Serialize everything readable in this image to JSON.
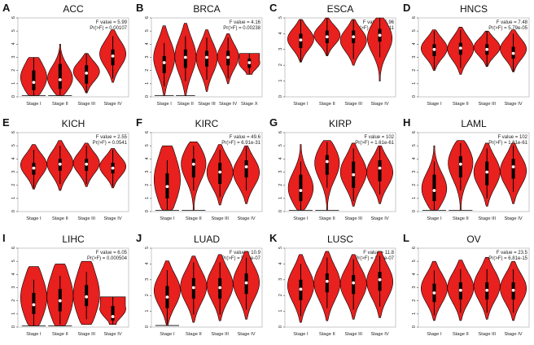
{
  "figure": {
    "violin_color": "#e8201e",
    "box_color": "#000000",
    "median_color": "#ffffff",
    "panel_border_color": "#bbbbbb",
    "text_color": "#222222",
    "y_ticks": [
      0,
      1,
      2,
      3,
      4,
      5,
      6
    ]
  },
  "chart_data": [
    {
      "letter": "A",
      "title": "ACC",
      "type": "violin",
      "f_label": "F value = 5.99",
      "p_label": "Pr(>F) = 0.00107",
      "categories": [
        "Stage I",
        "Stage II",
        "Stage III",
        "Stage IV"
      ],
      "ylim": [
        0,
        6
      ],
      "series": [
        {
          "category": "Stage I",
          "min": 0.1,
          "max": 3.0,
          "median": 1.1,
          "q1": 0.5,
          "q3": 2.0,
          "shape": "wide"
        },
        {
          "category": "Stage II",
          "min": 0.1,
          "max": 4.0,
          "median": 1.3,
          "q1": 0.6,
          "q3": 2.5,
          "shape": "low"
        },
        {
          "category": "Stage III",
          "min": 0.3,
          "max": 3.3,
          "median": 1.8,
          "q1": 1.0,
          "q3": 2.4,
          "shape": "mid"
        },
        {
          "category": "Stage IV",
          "min": 1.1,
          "max": 5.1,
          "median": 3.1,
          "q1": 2.4,
          "q3": 3.6,
          "shape": "mid"
        }
      ]
    },
    {
      "letter": "B",
      "title": "BRCA",
      "type": "violin",
      "f_label": "F value = 4.16",
      "p_label": "Pr(>F) = 0.00238",
      "categories": [
        "Stage I",
        "Stage II",
        "Stage III",
        "Stage IV",
        "Stage X"
      ],
      "ylim": [
        0,
        6
      ],
      "series": [
        {
          "category": "Stage I",
          "min": 0.1,
          "max": 5.4,
          "median": 2.6,
          "q1": 1.8,
          "q3": 3.1,
          "shape": "mid"
        },
        {
          "category": "Stage II",
          "min": 0.1,
          "max": 5.6,
          "median": 3.0,
          "q1": 2.2,
          "q3": 3.6,
          "shape": "mid"
        },
        {
          "category": "Stage III",
          "min": 0.4,
          "max": 5.1,
          "median": 3.0,
          "q1": 2.3,
          "q3": 3.5,
          "shape": "mid"
        },
        {
          "category": "Stage IV",
          "min": 1.0,
          "max": 4.8,
          "median": 3.0,
          "q1": 2.4,
          "q3": 3.5,
          "shape": "mid"
        },
        {
          "category": "Stage X",
          "min": 1.7,
          "max": 3.3,
          "median": 2.6,
          "q1": 2.2,
          "q3": 2.9,
          "shape": "top"
        }
      ]
    },
    {
      "letter": "C",
      "title": "ESCA",
      "type": "violin",
      "f_label": "F value = 5.96",
      "p_label": "Pr(>F) = 0.000511",
      "categories": [
        "Stage I",
        "Stage II",
        "Stage III",
        "Stage IV"
      ],
      "ylim": [
        0,
        5
      ],
      "series": [
        {
          "category": "Stage I",
          "min": 2.2,
          "max": 4.9,
          "median": 3.6,
          "q1": 3.1,
          "q3": 4.0,
          "shape": "mid"
        },
        {
          "category": "Stage II",
          "min": 2.6,
          "max": 5.0,
          "median": 3.8,
          "q1": 3.4,
          "q3": 4.2,
          "shape": "mid"
        },
        {
          "category": "Stage III",
          "min": 2.0,
          "max": 4.9,
          "median": 3.8,
          "q1": 3.4,
          "q3": 4.2,
          "shape": "mid"
        },
        {
          "category": "Stage IV",
          "min": 1.0,
          "max": 5.0,
          "median": 3.9,
          "q1": 3.5,
          "q3": 4.3,
          "shape": "high"
        }
      ]
    },
    {
      "letter": "D",
      "title": "HNCS",
      "type": "violin",
      "f_label": "F value = 7.48",
      "p_label": "Pr(>F) = 5.79e-05",
      "categories": [
        "Stage I",
        "Stage II",
        "Stage III",
        "Stage IV"
      ],
      "ylim": [
        0,
        6
      ],
      "series": [
        {
          "category": "Stage I",
          "min": 2.0,
          "max": 5.1,
          "median": 3.6,
          "q1": 3.1,
          "q3": 4.0,
          "shape": "mid"
        },
        {
          "category": "Stage II",
          "min": 1.7,
          "max": 5.3,
          "median": 3.7,
          "q1": 3.2,
          "q3": 4.1,
          "shape": "mid"
        },
        {
          "category": "Stage III",
          "min": 2.3,
          "max": 5.0,
          "median": 3.6,
          "q1": 3.2,
          "q3": 4.0,
          "shape": "mid"
        },
        {
          "category": "Stage IV",
          "min": 1.9,
          "max": 5.1,
          "median": 3.3,
          "q1": 2.9,
          "q3": 3.8,
          "shape": "mid"
        }
      ]
    },
    {
      "letter": "E",
      "title": "KICH",
      "type": "violin",
      "f_label": "F value = 2.55",
      "p_label": "Pr(>F) = 0.0541",
      "categories": [
        "Stage I",
        "Stage II",
        "Stage III",
        "Stage IV"
      ],
      "ylim": [
        0,
        6
      ],
      "series": [
        {
          "category": "Stage I",
          "min": 1.7,
          "max": 5.1,
          "median": 3.3,
          "q1": 2.8,
          "q3": 3.7,
          "shape": "mid"
        },
        {
          "category": "Stage II",
          "min": 1.6,
          "max": 5.4,
          "median": 3.6,
          "q1": 3.1,
          "q3": 4.0,
          "shape": "mid"
        },
        {
          "category": "Stage III",
          "min": 1.9,
          "max": 5.2,
          "median": 3.6,
          "q1": 3.1,
          "q3": 4.0,
          "shape": "mid"
        },
        {
          "category": "Stage IV",
          "min": 1.8,
          "max": 4.8,
          "median": 3.3,
          "q1": 2.9,
          "q3": 3.7,
          "shape": "mid"
        }
      ]
    },
    {
      "letter": "F",
      "title": "KIRC",
      "type": "violin",
      "f_label": "F value = 49.6",
      "p_label": "Pr(>F) = 6.91e-31",
      "categories": [
        "Stage I",
        "Stage II",
        "Stage III",
        "Stage IV"
      ],
      "ylim": [
        0,
        6
      ],
      "series": [
        {
          "category": "Stage I",
          "min": 0.1,
          "max": 5.0,
          "median": 1.9,
          "q1": 1.0,
          "q3": 2.9,
          "shape": "wide"
        },
        {
          "category": "Stage II",
          "min": 0.1,
          "max": 5.3,
          "median": 3.6,
          "q1": 2.6,
          "q3": 4.0,
          "shape": "high"
        },
        {
          "category": "Stage III",
          "min": 0.5,
          "max": 5.1,
          "median": 3.0,
          "q1": 2.1,
          "q3": 3.7,
          "shape": "mid"
        },
        {
          "category": "Stage IV",
          "min": 0.6,
          "max": 5.0,
          "median": 3.4,
          "q1": 2.6,
          "q3": 3.9,
          "shape": "mid"
        }
      ]
    },
    {
      "letter": "G",
      "title": "KIRP",
      "type": "violin",
      "f_label": "F value = 102",
      "p_label": "Pr(>F) = 1.61e-61",
      "categories": [
        "Stage I",
        "Stage II",
        "Stage III",
        "Stage IV"
      ],
      "ylim": [
        0,
        6
      ],
      "series": [
        {
          "category": "Stage I",
          "min": 0.1,
          "max": 5.1,
          "median": 1.6,
          "q1": 0.8,
          "q3": 2.8,
          "shape": "low"
        },
        {
          "category": "Stage II",
          "min": 0.1,
          "max": 5.4,
          "median": 3.8,
          "q1": 2.8,
          "q3": 4.3,
          "shape": "high"
        },
        {
          "category": "Stage III",
          "min": 0.4,
          "max": 5.2,
          "median": 2.8,
          "q1": 1.8,
          "q3": 3.8,
          "shape": "mid"
        },
        {
          "category": "Stage IV",
          "min": 0.6,
          "max": 5.0,
          "median": 3.3,
          "q1": 2.3,
          "q3": 3.9,
          "shape": "mid"
        }
      ]
    },
    {
      "letter": "H",
      "title": "LAML",
      "type": "violin",
      "f_label": "F value = 102",
      "p_label": "Pr(>F) = 1.61e-61",
      "categories": [
        "Stage I",
        "Stage II",
        "Stage III",
        "Stage IV"
      ],
      "ylim": [
        0,
        6
      ],
      "series": [
        {
          "category": "Stage I",
          "min": 0.1,
          "max": 5.0,
          "median": 1.6,
          "q1": 0.8,
          "q3": 2.8,
          "shape": "low"
        },
        {
          "category": "Stage II",
          "min": 0.1,
          "max": 5.4,
          "median": 3.6,
          "q1": 2.6,
          "q3": 4.2,
          "shape": "high"
        },
        {
          "category": "Stage III",
          "min": 0.4,
          "max": 5.2,
          "median": 3.0,
          "q1": 2.0,
          "q3": 3.8,
          "shape": "mid"
        },
        {
          "category": "Stage IV",
          "min": 0.6,
          "max": 5.2,
          "median": 3.4,
          "q1": 2.5,
          "q3": 4.0,
          "shape": "mid"
        }
      ]
    },
    {
      "letter": "I",
      "title": "LIHC",
      "type": "violin",
      "f_label": "F value = 6.05",
      "p_label": "Pr(>F) = 0.000504",
      "categories": [
        "Stage I",
        "Stage II",
        "Stage III",
        "Stage IV"
      ],
      "ylim": [
        0,
        6
      ],
      "series": [
        {
          "category": "Stage I",
          "min": 0.1,
          "max": 4.6,
          "median": 1.7,
          "q1": 1.0,
          "q3": 2.6,
          "shape": "wide"
        },
        {
          "category": "Stage II",
          "min": 0.1,
          "max": 4.8,
          "median": 2.0,
          "q1": 1.2,
          "q3": 2.9,
          "shape": "wide"
        },
        {
          "category": "Stage III",
          "min": 0.2,
          "max": 5.0,
          "median": 2.3,
          "q1": 1.6,
          "q3": 3.2,
          "shape": "wide"
        },
        {
          "category": "Stage IV",
          "min": 0.2,
          "max": 2.3,
          "median": 0.8,
          "q1": 0.5,
          "q3": 1.6,
          "shape": "top"
        }
      ]
    },
    {
      "letter": "J",
      "title": "LUAD",
      "type": "violin",
      "f_label": "F value = 10.9",
      "p_label": "Pr(>F) = 5.19e-07",
      "categories": [
        "Stage I",
        "Stage II",
        "Stage III",
        "Stage IV"
      ],
      "ylim": [
        0,
        5
      ],
      "series": [
        {
          "category": "Stage I",
          "min": 0.1,
          "max": 4.2,
          "median": 1.9,
          "q1": 1.2,
          "q3": 2.6,
          "shape": "mid"
        },
        {
          "category": "Stage II",
          "min": 0.3,
          "max": 4.5,
          "median": 2.5,
          "q1": 1.8,
          "q3": 3.1,
          "shape": "mid"
        },
        {
          "category": "Stage III",
          "min": 0.4,
          "max": 4.6,
          "median": 2.5,
          "q1": 1.8,
          "q3": 3.1,
          "shape": "mid"
        },
        {
          "category": "Stage IV",
          "min": 0.5,
          "max": 4.8,
          "median": 2.8,
          "q1": 2.1,
          "q3": 3.4,
          "shape": "mid"
        }
      ]
    },
    {
      "letter": "K",
      "title": "LUSC",
      "type": "violin",
      "f_label": "F value = 11.8",
      "p_label": "Pr(>F) = 1.29e-07",
      "categories": [
        "Stage I",
        "Stage II",
        "Stage III",
        "Stage IV"
      ],
      "ylim": [
        0,
        5
      ],
      "series": [
        {
          "category": "Stage I",
          "min": 0.3,
          "max": 4.6,
          "median": 2.4,
          "q1": 1.7,
          "q3": 3.0,
          "shape": "mid"
        },
        {
          "category": "Stage II",
          "min": 0.4,
          "max": 4.8,
          "median": 2.9,
          "q1": 2.2,
          "q3": 3.4,
          "shape": "mid"
        },
        {
          "category": "Stage III",
          "min": 0.5,
          "max": 4.6,
          "median": 2.8,
          "q1": 2.1,
          "q3": 3.3,
          "shape": "mid"
        },
        {
          "category": "Stage IV",
          "min": 0.6,
          "max": 4.8,
          "median": 3.0,
          "q1": 2.3,
          "q3": 3.5,
          "shape": "mid"
        }
      ]
    },
    {
      "letter": "L",
      "title": "OV",
      "type": "violin",
      "f_label": "F value = 23.5",
      "p_label": "Pr(>F) = 6.81e-15",
      "categories": [
        "Stage I",
        "Stage II",
        "Stage III",
        "Stage IV"
      ],
      "ylim": [
        0,
        6
      ],
      "series": [
        {
          "category": "Stage I",
          "min": 0.5,
          "max": 5.0,
          "median": 2.6,
          "q1": 1.9,
          "q3": 3.3,
          "shape": "mid"
        },
        {
          "category": "Stage II",
          "min": 0.5,
          "max": 5.1,
          "median": 2.8,
          "q1": 2.1,
          "q3": 3.4,
          "shape": "mid"
        },
        {
          "category": "Stage III",
          "min": 0.6,
          "max": 5.3,
          "median": 2.8,
          "q1": 2.1,
          "q3": 3.4,
          "shape": "mid"
        },
        {
          "category": "Stage IV",
          "min": 0.5,
          "max": 5.0,
          "median": 2.8,
          "q1": 2.1,
          "q3": 3.4,
          "shape": "mid"
        }
      ]
    }
  ]
}
